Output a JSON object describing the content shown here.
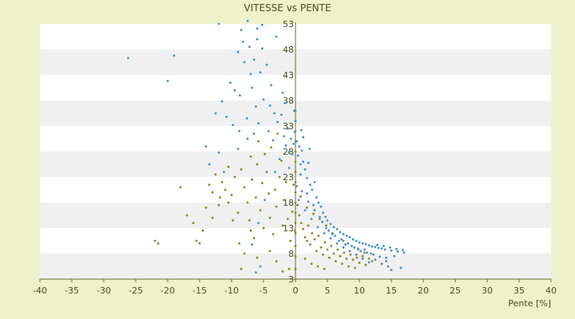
{
  "chart_data": {
    "type": "scatter",
    "title": "VITESSE vs PENTE",
    "xlabel": "Pente [%]",
    "ylabel": "",
    "xlim": [
      -40,
      40
    ],
    "ylim": [
      3,
      53
    ],
    "x_ticks": [
      "-40",
      "-35",
      "-30",
      "-25",
      "-20",
      "-15",
      "-10",
      "-5",
      "0",
      "5",
      "10",
      "15",
      "20",
      "25",
      "30",
      "35",
      "40"
    ],
    "y_ticks": [
      "3",
      "8",
      "13",
      "18",
      "23",
      "28",
      "33",
      "38",
      "43",
      "48",
      "53"
    ],
    "grid": "horizontal bands",
    "legend": "none",
    "colors": {
      "background": "#eef2cc",
      "band_light": "#ffffff",
      "band_dark": "#f0f0f0",
      "axis": "#6b6b2e",
      "series_blue": "#3d8fd9",
      "series_olive": "#8a8a1a"
    },
    "series": [
      {
        "marker": "blue-dot",
        "points": [
          [
            -26.2,
            46.3
          ],
          [
            -19.0,
            46.8
          ],
          [
            -20.0,
            41.8
          ],
          [
            -12.0,
            53.0
          ],
          [
            -7.5,
            53.6
          ],
          [
            -8.5,
            51.8
          ],
          [
            -6.0,
            52.1
          ],
          [
            -5.2,
            52.8
          ],
          [
            -3.0,
            50.5
          ],
          [
            -9.0,
            47.5
          ],
          [
            -8.0,
            45.5
          ],
          [
            -6.5,
            46.0
          ],
          [
            -4.5,
            45.0
          ],
          [
            -5.5,
            43.5
          ],
          [
            -7.0,
            43.2
          ],
          [
            -10.2,
            41.5
          ],
          [
            -9.5,
            40.0
          ],
          [
            -8.7,
            39.0
          ],
          [
            -6.8,
            40.5
          ],
          [
            -11.5,
            37.8
          ],
          [
            -12.5,
            35.5
          ],
          [
            -10.8,
            34.8
          ],
          [
            -9.8,
            33.2
          ],
          [
            -8.8,
            32.0
          ],
          [
            -7.6,
            34.5
          ],
          [
            -6.2,
            36.8
          ],
          [
            -5.0,
            38.2
          ],
          [
            -4.0,
            37.0
          ],
          [
            -3.3,
            35.5
          ],
          [
            -14.0,
            29.0
          ],
          [
            -13.5,
            25.5
          ],
          [
            -12.0,
            27.8
          ],
          [
            -11.2,
            24.0
          ],
          [
            -9.0,
            28.5
          ],
          [
            -7.5,
            30.5
          ],
          [
            -6.5,
            31.5
          ],
          [
            -5.8,
            33.5
          ],
          [
            -4.2,
            32.0
          ],
          [
            -3.5,
            30.2
          ],
          [
            -2.8,
            33.8
          ],
          [
            -2.2,
            35.2
          ],
          [
            -1.8,
            31.0
          ],
          [
            -1.5,
            29.2
          ],
          [
            -1.2,
            32.5
          ],
          [
            -0.9,
            28.0
          ],
          [
            -0.7,
            30.5
          ],
          [
            -0.5,
            27.5
          ],
          [
            -0.3,
            29.5
          ],
          [
            -0.1,
            31.8
          ],
          [
            0.2,
            30.0
          ],
          [
            0.4,
            27.2
          ],
          [
            0.6,
            29.0
          ],
          [
            0.8,
            25.5
          ],
          [
            1.0,
            28.2
          ],
          [
            1.2,
            26.0
          ],
          [
            1.5,
            24.5
          ],
          [
            1.8,
            22.8
          ],
          [
            2.0,
            25.8
          ],
          [
            2.3,
            21.5
          ],
          [
            2.6,
            20.5
          ],
          [
            3.0,
            22.0
          ],
          [
            3.3,
            19.0
          ],
          [
            3.6,
            18.0
          ],
          [
            4.0,
            17.2
          ],
          [
            4.3,
            16.0
          ],
          [
            4.7,
            15.2
          ],
          [
            5.0,
            14.5
          ],
          [
            5.5,
            13.8
          ],
          [
            6.0,
            13.2
          ],
          [
            6.5,
            12.8
          ],
          [
            7.0,
            12.2
          ],
          [
            7.5,
            11.8
          ],
          [
            8.0,
            11.5
          ],
          [
            8.5,
            11.2
          ],
          [
            9.0,
            10.8
          ],
          [
            9.5,
            10.5
          ],
          [
            10.0,
            10.2
          ],
          [
            10.5,
            10.0
          ],
          [
            11.0,
            9.9
          ],
          [
            11.5,
            9.6
          ],
          [
            12.0,
            9.4
          ],
          [
            12.5,
            9.3
          ],
          [
            13.0,
            9.1
          ],
          [
            13.5,
            9.0
          ],
          [
            14.0,
            8.8
          ],
          [
            15.0,
            8.6
          ],
          [
            16.0,
            8.4
          ],
          [
            17.0,
            8.2
          ],
          [
            15.5,
            7.5
          ],
          [
            16.5,
            5.2
          ],
          [
            15.0,
            4.8
          ],
          [
            14.5,
            5.5
          ],
          [
            13.5,
            6.0
          ],
          [
            12.5,
            6.8
          ],
          [
            11.5,
            6.3
          ],
          [
            10.5,
            7.0
          ],
          [
            9.5,
            7.8
          ],
          [
            8.5,
            8.5
          ],
          [
            7.5,
            9.2
          ],
          [
            6.5,
            10.0
          ],
          [
            5.5,
            11.0
          ],
          [
            4.5,
            12.0
          ],
          [
            3.5,
            13.2
          ],
          [
            2.5,
            14.8
          ],
          [
            1.5,
            16.5
          ],
          [
            0.5,
            18.5
          ],
          [
            0.2,
            21.2
          ],
          [
            0.8,
            23.5
          ],
          [
            1.8,
            19.8
          ],
          [
            2.8,
            17.5
          ],
          [
            3.8,
            15.2
          ],
          [
            4.8,
            13.0
          ],
          [
            5.8,
            11.8
          ],
          [
            6.8,
            10.5
          ],
          [
            7.8,
            9.8
          ],
          [
            8.8,
            9.5
          ],
          [
            9.8,
            9.0
          ],
          [
            10.8,
            8.8
          ],
          [
            11.8,
            8.0
          ],
          [
            -4.8,
            18.5
          ],
          [
            -5.8,
            14.0
          ],
          [
            -6.8,
            9.8
          ],
          [
            -5.5,
            5.5
          ],
          [
            -6.2,
            4.3
          ],
          [
            -3.2,
            24.0
          ],
          [
            -2.5,
            26.5
          ],
          [
            -1.0,
            24.8
          ],
          [
            0.0,
            34.0
          ],
          [
            -0.2,
            36.0
          ],
          [
            1.2,
            30.8
          ],
          [
            2.2,
            28.5
          ],
          [
            0.9,
            32.2
          ],
          [
            -1.6,
            37.5
          ],
          [
            -2.0,
            39.5
          ],
          [
            -3.8,
            41.0
          ],
          [
            -7.2,
            48.5
          ],
          [
            -5.2,
            48.2
          ],
          [
            -8.2,
            49.5
          ],
          [
            -6.0,
            50.0
          ],
          [
            3.0,
            16.5
          ],
          [
            4.2,
            14.2
          ],
          [
            5.2,
            12.5
          ],
          [
            6.2,
            11.5
          ],
          [
            7.2,
            10.8
          ],
          [
            8.2,
            10.0
          ],
          [
            9.2,
            9.2
          ],
          [
            10.2,
            8.5
          ],
          [
            11.2,
            8.2
          ],
          [
            12.2,
            7.8
          ],
          [
            13.2,
            7.4
          ],
          [
            14.2,
            6.5
          ],
          [
            12.8,
            9.7
          ],
          [
            13.8,
            9.5
          ],
          [
            14.8,
            9.2
          ],
          [
            15.8,
            8.9
          ],
          [
            16.8,
            8.7
          ],
          [
            14.2,
            7.2
          ],
          [
            2.0,
            18.2
          ],
          [
            1.0,
            20.2
          ]
        ]
      },
      {
        "marker": "olive-dot",
        "points": [
          [
            -22.0,
            10.5
          ],
          [
            -21.5,
            10.0
          ],
          [
            -18.0,
            21.0
          ],
          [
            -17.0,
            15.5
          ],
          [
            -16.0,
            14.0
          ],
          [
            -15.5,
            10.5
          ],
          [
            -15.0,
            10.0
          ],
          [
            -14.0,
            17.0
          ],
          [
            -13.5,
            21.5
          ],
          [
            -13.0,
            20.0
          ],
          [
            -12.5,
            23.5
          ],
          [
            -12.0,
            17.5
          ],
          [
            -11.5,
            22.0
          ],
          [
            -11.0,
            20.5
          ],
          [
            -10.5,
            25.0
          ],
          [
            -10.0,
            19.5
          ],
          [
            -9.5,
            23.0
          ],
          [
            -9.0,
            16.0
          ],
          [
            -8.8,
            10.0
          ],
          [
            -8.5,
            24.5
          ],
          [
            -8.0,
            21.0
          ],
          [
            -7.5,
            18.0
          ],
          [
            -7.2,
            14.5
          ],
          [
            -7.0,
            27.0
          ],
          [
            -6.8,
            22.5
          ],
          [
            -6.5,
            11.0
          ],
          [
            -6.2,
            19.0
          ],
          [
            -6.0,
            25.5
          ],
          [
            -5.8,
            30.0
          ],
          [
            -5.5,
            16.5
          ],
          [
            -5.2,
            21.8
          ],
          [
            -5.0,
            13.0
          ],
          [
            -4.8,
            27.5
          ],
          [
            -4.5,
            24.0
          ],
          [
            -4.2,
            19.8
          ],
          [
            -4.0,
            15.0
          ],
          [
            -3.8,
            28.8
          ],
          [
            -3.5,
            11.8
          ],
          [
            -3.2,
            20.5
          ],
          [
            -3.0,
            17.2
          ],
          [
            -2.8,
            31.5
          ],
          [
            -2.5,
            23.0
          ],
          [
            -2.2,
            26.2
          ],
          [
            -2.0,
            13.5
          ],
          [
            -1.8,
            18.5
          ],
          [
            -1.5,
            22.0
          ],
          [
            -1.2,
            14.8
          ],
          [
            -1.0,
            27.8
          ],
          [
            -0.8,
            10.5
          ],
          [
            -0.5,
            16.2
          ],
          [
            -0.3,
            21.5
          ],
          [
            -0.1,
            12.5
          ],
          [
            0.0,
            5.0
          ],
          [
            0.0,
            7.5
          ],
          [
            0.0,
            9.5
          ],
          [
            0.0,
            12.0
          ],
          [
            0.0,
            14.0
          ],
          [
            0.0,
            16.0
          ],
          [
            0.0,
            18.0
          ],
          [
            0.0,
            20.0
          ],
          [
            0.0,
            22.0
          ],
          [
            0.0,
            24.0
          ],
          [
            0.0,
            26.0
          ],
          [
            0.0,
            28.0
          ],
          [
            0.0,
            30.0
          ],
          [
            0.0,
            32.0
          ],
          [
            0.0,
            34.0
          ],
          [
            0.0,
            36.0
          ],
          [
            0.3,
            17.5
          ],
          [
            0.6,
            15.5
          ],
          [
            0.9,
            14.0
          ],
          [
            1.2,
            12.8
          ],
          [
            1.5,
            11.2
          ],
          [
            1.8,
            10.5
          ],
          [
            2.0,
            13.5
          ],
          [
            2.3,
            9.8
          ],
          [
            2.6,
            12.0
          ],
          [
            3.0,
            10.8
          ],
          [
            3.3,
            8.5
          ],
          [
            3.6,
            11.5
          ],
          [
            4.0,
            9.2
          ],
          [
            4.3,
            7.8
          ],
          [
            4.6,
            10.2
          ],
          [
            5.0,
            8.8
          ],
          [
            5.3,
            7.2
          ],
          [
            5.6,
            9.5
          ],
          [
            6.0,
            8.0
          ],
          [
            6.3,
            6.5
          ],
          [
            6.6,
            8.8
          ],
          [
            7.0,
            7.5
          ],
          [
            7.3,
            6.0
          ],
          [
            7.6,
            8.2
          ],
          [
            8.0,
            7.0
          ],
          [
            8.3,
            5.5
          ],
          [
            8.6,
            7.8
          ],
          [
            9.0,
            6.8
          ],
          [
            9.3,
            5.2
          ],
          [
            9.6,
            7.2
          ],
          [
            10.0,
            6.2
          ],
          [
            10.5,
            7.5
          ],
          [
            11.0,
            5.8
          ],
          [
            11.5,
            7.0
          ],
          [
            12.0,
            6.5
          ],
          [
            3.5,
            5.5
          ],
          [
            4.5,
            5.0
          ],
          [
            2.5,
            6.0
          ],
          [
            1.5,
            7.0
          ],
          [
            -1.0,
            5.0
          ],
          [
            -2.0,
            4.5
          ],
          [
            -3.0,
            6.5
          ],
          [
            -4.0,
            8.5
          ],
          [
            -6.0,
            7.2
          ],
          [
            -8.5,
            5.0
          ],
          [
            -8.0,
            8.0
          ],
          [
            -7.0,
            12.5
          ],
          [
            -9.8,
            14.5
          ],
          [
            -10.5,
            18.0
          ],
          [
            -11.8,
            19.0
          ],
          [
            -13.0,
            15.0
          ],
          [
            -14.5,
            12.5
          ],
          [
            5.8,
            12.0
          ],
          [
            4.8,
            13.5
          ],
          [
            3.8,
            14.8
          ],
          [
            2.8,
            15.8
          ],
          [
            1.8,
            17.0
          ],
          [
            0.8,
            19.2
          ],
          [
            7.5,
            10.5
          ],
          [
            8.8,
            9.5
          ],
          [
            9.8,
            8.8
          ],
          [
            10.8,
            8.2
          ]
        ]
      }
    ]
  }
}
